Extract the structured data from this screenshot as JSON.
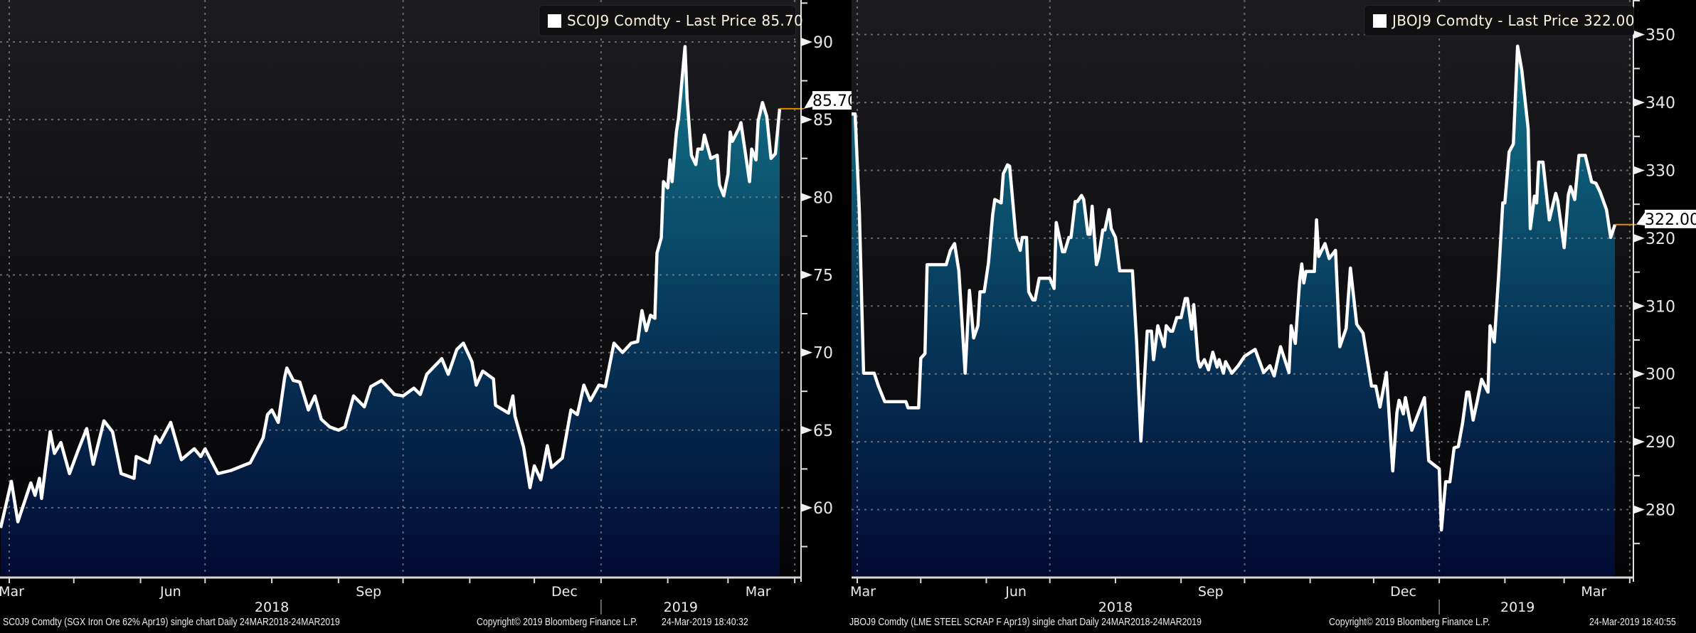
{
  "chart_data": [
    {
      "type": "area",
      "title": "SC0J9 Comdty",
      "legend": "SC0J9 Comdty - Last Price 85.70",
      "series_name": "SC0J9 Comdty - Last Price",
      "last_price": "85.70",
      "x_unit": "days since 24-Mar-2018",
      "xlim": [
        0,
        366
      ],
      "ylim": [
        55.6,
        92.7
      ],
      "yticks": [
        60,
        65,
        70,
        75,
        80,
        85,
        90
      ],
      "ytick_labels": [
        "60",
        "65",
        "70",
        "75",
        "80",
        "85",
        "90"
      ],
      "minor_ytick_step": 2.5,
      "grid": true,
      "legend_position": "top-right",
      "month_labels": [
        "Mar",
        "Jun",
        "Sep",
        "Dec",
        "Mar"
      ],
      "year_labels": [
        "2018",
        "2019"
      ],
      "colors": {
        "line": "#ffffff",
        "fill_top": "#13768b",
        "fill_bottom": "#020a33",
        "last_price_line": "#e08a00"
      },
      "points": [
        [
          4,
          58.7
        ],
        [
          9,
          61.7
        ],
        [
          12,
          59.1
        ],
        [
          18,
          61.6
        ],
        [
          20,
          60.8
        ],
        [
          22,
          61.9
        ],
        [
          23,
          60.6
        ],
        [
          27,
          64.9
        ],
        [
          29,
          63.5
        ],
        [
          32,
          64.2
        ],
        [
          36,
          62.2
        ],
        [
          40,
          63.7
        ],
        [
          44,
          65.1
        ],
        [
          47,
          62.8
        ],
        [
          52,
          65.6
        ],
        [
          56,
          64.9
        ],
        [
          60,
          62.2
        ],
        [
          66,
          61.9
        ],
        [
          67,
          63.3
        ],
        [
          73,
          62.9
        ],
        [
          76,
          64.6
        ],
        [
          78,
          64.2
        ],
        [
          83,
          65.5
        ],
        [
          88,
          63.1
        ],
        [
          94,
          63.8
        ],
        [
          97,
          63.3
        ],
        [
          99,
          63.8
        ],
        [
          105,
          62.2
        ],
        [
          111,
          62.4
        ],
        [
          120,
          62.9
        ],
        [
          126,
          64.5
        ],
        [
          128,
          66.0
        ],
        [
          130,
          66.3
        ],
        [
          133,
          65.5
        ],
        [
          136,
          68.4
        ],
        [
          137,
          69.0
        ],
        [
          140,
          68.2
        ],
        [
          143,
          68.1
        ],
        [
          147,
          66.3
        ],
        [
          150,
          67.2
        ],
        [
          153,
          65.7
        ],
        [
          157,
          65.2
        ],
        [
          161,
          65.0
        ],
        [
          164,
          65.2
        ],
        [
          168,
          67.2
        ],
        [
          173,
          66.5
        ],
        [
          176,
          67.8
        ],
        [
          181,
          68.2
        ],
        [
          187,
          67.3
        ],
        [
          191,
          67.2
        ],
        [
          196,
          67.7
        ],
        [
          199,
          67.3
        ],
        [
          202,
          68.6
        ],
        [
          209,
          69.6
        ],
        [
          212,
          68.6
        ],
        [
          216,
          70.2
        ],
        [
          219,
          70.6
        ],
        [
          223,
          69.4
        ],
        [
          225,
          67.9
        ],
        [
          228,
          68.8
        ],
        [
          233,
          68.3
        ],
        [
          234,
          66.6
        ],
        [
          240,
          66.1
        ],
        [
          242,
          67.2
        ],
        [
          243,
          65.9
        ],
        [
          247,
          63.9
        ],
        [
          250,
          61.3
        ],
        [
          252,
          62.7
        ],
        [
          255,
          61.8
        ],
        [
          258,
          64.0
        ],
        [
          260,
          62.6
        ],
        [
          265,
          63.2
        ],
        [
          269,
          66.3
        ],
        [
          272,
          66.0
        ],
        [
          275,
          67.9
        ],
        [
          278,
          66.9
        ],
        [
          282,
          67.9
        ],
        [
          285,
          67.8
        ],
        [
          289,
          70.6
        ],
        [
          293,
          70.0
        ],
        [
          297,
          70.6
        ],
        [
          300,
          70.7
        ],
        [
          302,
          72.7
        ],
        [
          304,
          71.4
        ],
        [
          306,
          72.4
        ],
        [
          308,
          72.2
        ],
        [
          309,
          76.4
        ],
        [
          311,
          77.4
        ],
        [
          312,
          81.0
        ],
        [
          314,
          80.6
        ],
        [
          315,
          82.4
        ],
        [
          316,
          81.0
        ],
        [
          318,
          84.2
        ],
        [
          319,
          85.1
        ],
        [
          322,
          89.7
        ],
        [
          323,
          86.3
        ],
        [
          325,
          82.7
        ],
        [
          327,
          82.1
        ],
        [
          328,
          83.1
        ],
        [
          330,
          83.1
        ],
        [
          331,
          84.0
        ],
        [
          334,
          82.5
        ],
        [
          337,
          82.7
        ],
        [
          338,
          80.8
        ],
        [
          340,
          80.1
        ],
        [
          342,
          81.5
        ],
        [
          343,
          84.2
        ],
        [
          344,
          83.6
        ],
        [
          347,
          84.4
        ],
        [
          348,
          84.8
        ],
        [
          352,
          81.0
        ],
        [
          353,
          83.1
        ],
        [
          355,
          82.4
        ],
        [
          356,
          84.9
        ],
        [
          358,
          86.1
        ],
        [
          360,
          85.2
        ],
        [
          362,
          82.5
        ],
        [
          364,
          82.8
        ],
        [
          366,
          85.7
        ]
      ]
    },
    {
      "type": "area",
      "title": "JBOJ9 Comdty",
      "legend": "JBOJ9 Comdty - Last Price 322.00",
      "series_name": "JBOJ9 Comdty - Last Price",
      "last_price": "322.00",
      "x_unit": "days since 24-Mar-2018",
      "xlim": [
        0,
        366
      ],
      "ylim": [
        270.2,
        355.1
      ],
      "yticks": [
        280,
        290,
        300,
        310,
        320,
        330,
        340,
        350
      ],
      "ytick_labels": [
        "280",
        "290",
        "300",
        "310",
        "320",
        "330",
        "340",
        "350"
      ],
      "minor_ytick_step": 5,
      "grid": true,
      "legend_position": "top-right",
      "month_labels": [
        "Mar",
        "Jun",
        "Sep",
        "Dec",
        "Mar"
      ],
      "year_labels": [
        "2018",
        "2019"
      ],
      "colors": {
        "line": "#ffffff",
        "fill_top": "#13768b",
        "fill_bottom": "#020a33",
        "last_price_line": "#e08a00"
      },
      "points": [
        [
          4,
          338.3
        ],
        [
          7,
          338.3
        ],
        [
          9,
          323.8
        ],
        [
          11,
          300.1
        ],
        [
          16,
          300.1
        ],
        [
          18,
          298.2
        ],
        [
          21,
          295.9
        ],
        [
          31,
          295.9
        ],
        [
          32,
          295.0
        ],
        [
          37,
          295.0
        ],
        [
          38,
          302.3
        ],
        [
          40,
          303.0
        ],
        [
          41,
          316.1
        ],
        [
          50,
          316.1
        ],
        [
          52,
          318.2
        ],
        [
          54,
          319.2
        ],
        [
          56,
          315.2
        ],
        [
          59,
          300.1
        ],
        [
          61,
          312.3
        ],
        [
          63,
          305.3
        ],
        [
          65,
          307.1
        ],
        [
          66,
          312.1
        ],
        [
          68,
          312.1
        ],
        [
          70,
          316.4
        ],
        [
          72,
          323.5
        ],
        [
          73,
          325.7
        ],
        [
          76,
          325.2
        ],
        [
          77,
          329.5
        ],
        [
          79,
          330.8
        ],
        [
          80,
          330.6
        ],
        [
          83,
          320.1
        ],
        [
          85,
          318.2
        ],
        [
          86,
          320.1
        ],
        [
          88,
          320.1
        ],
        [
          89,
          312.1
        ],
        [
          91,
          310.9
        ],
        [
          92,
          310.9
        ],
        [
          94,
          314.1
        ],
        [
          99,
          314.1
        ],
        [
          101,
          312.6
        ],
        [
          102,
          322.3
        ],
        [
          105,
          318.0
        ],
        [
          106,
          318.0
        ],
        [
          108,
          320.1
        ],
        [
          109,
          320.1
        ],
        [
          111,
          325.4
        ],
        [
          112,
          325.4
        ],
        [
          114,
          326.3
        ],
        [
          115,
          325.7
        ],
        [
          117,
          320.6
        ],
        [
          118,
          320.6
        ],
        [
          119,
          324.7
        ],
        [
          121,
          316.1
        ],
        [
          122,
          317.1
        ],
        [
          124,
          321.2
        ],
        [
          125,
          321.2
        ],
        [
          127,
          324.2
        ],
        [
          128,
          321.4
        ],
        [
          130,
          320.1
        ],
        [
          132,
          315.2
        ],
        [
          138,
          315.2
        ],
        [
          140,
          304.7
        ],
        [
          142,
          290.1
        ],
        [
          145,
          306.3
        ],
        [
          147,
          306.3
        ],
        [
          148,
          302.1
        ],
        [
          150,
          307.1
        ],
        [
          153,
          304.0
        ],
        [
          154,
          307.1
        ],
        [
          156,
          306.3
        ],
        [
          157,
          306.3
        ],
        [
          159,
          308.3
        ],
        [
          161,
          308.3
        ],
        [
          163,
          311.1
        ],
        [
          164,
          311.1
        ],
        [
          166,
          306.6
        ],
        [
          167,
          310.2
        ],
        [
          169,
          302.1
        ],
        [
          170,
          301.0
        ],
        [
          172,
          302.1
        ],
        [
          174,
          300.6
        ],
        [
          176,
          303.2
        ],
        [
          178,
          301.0
        ],
        [
          179,
          302.1
        ],
        [
          181,
          300.1
        ],
        [
          182,
          301.8
        ],
        [
          185,
          300.1
        ],
        [
          188,
          301.2
        ],
        [
          191,
          302.6
        ],
        [
          196,
          303.6
        ],
        [
          200,
          300.2
        ],
        [
          203,
          301.2
        ],
        [
          205,
          299.7
        ],
        [
          208,
          304.0
        ],
        [
          212,
          300.2
        ],
        [
          213,
          307.1
        ],
        [
          215,
          304.5
        ],
        [
          217,
          313.6
        ],
        [
          218,
          316.2
        ],
        [
          219,
          313.4
        ],
        [
          220,
          315.1
        ],
        [
          224,
          315.1
        ],
        [
          225,
          322.7
        ],
        [
          226,
          317.3
        ],
        [
          229,
          319.2
        ],
        [
          231,
          317.0
        ],
        [
          234,
          318.2
        ],
        [
          236,
          304.0
        ],
        [
          239,
          306.7
        ],
        [
          241,
          315.6
        ],
        [
          244,
          307.3
        ],
        [
          247,
          306.0
        ],
        [
          251,
          298.2
        ],
        [
          253,
          298.2
        ],
        [
          255,
          295.1
        ],
        [
          258,
          300.2
        ],
        [
          261,
          285.7
        ],
        [
          263,
          294.3
        ],
        [
          264,
          296.1
        ],
        [
          266,
          294.1
        ],
        [
          267,
          296.5
        ],
        [
          270,
          291.7
        ],
        [
          276,
          296.5
        ],
        [
          278,
          287.2
        ],
        [
          283,
          286.0
        ],
        [
          284,
          277.0
        ],
        [
          286,
          284.1
        ],
        [
          288,
          284.1
        ],
        [
          290,
          289.1
        ],
        [
          292,
          289.3
        ],
        [
          294,
          292.7
        ],
        [
          296,
          297.3
        ],
        [
          297,
          297.3
        ],
        [
          299,
          293.2
        ],
        [
          301,
          296.1
        ],
        [
          303,
          299.2
        ],
        [
          306,
          297.3
        ],
        [
          307,
          307.1
        ],
        [
          309,
          304.7
        ],
        [
          311,
          314.2
        ],
        [
          313,
          325.2
        ],
        [
          314,
          325.2
        ],
        [
          316,
          332.7
        ],
        [
          318,
          333.9
        ],
        [
          320,
          348.3
        ],
        [
          322,
          344.7
        ],
        [
          325,
          336.1
        ],
        [
          326,
          321.4
        ],
        [
          328,
          326.2
        ],
        [
          329,
          325.2
        ],
        [
          330,
          331.2
        ],
        [
          332,
          331.2
        ],
        [
          335,
          322.7
        ],
        [
          338,
          326.6
        ],
        [
          339,
          325.5
        ],
        [
          342,
          318.6
        ],
        [
          344,
          326.4
        ],
        [
          345,
          327.6
        ],
        [
          347,
          325.7
        ],
        [
          349,
          332.2
        ],
        [
          352,
          332.2
        ],
        [
          355,
          328.3
        ],
        [
          357,
          328.1
        ],
        [
          359,
          326.8
        ],
        [
          362,
          324.2
        ],
        [
          364,
          320.1
        ],
        [
          366,
          322.0
        ]
      ]
    }
  ],
  "footers": [
    {
      "description": "SC0J9 Comdty (SGX Iron Ore 62% Apr19) single chart  Daily 24MAR2018-24MAR2019",
      "copyright": "Copyright© 2019 Bloomberg Finance L.P.",
      "timestamp": "24-Mar-2019 18:40:32"
    },
    {
      "description": "JBOJ9 Comdty (LME STEEL SCRAP F Apr19) single chart  Daily 24MAR2018-24MAR2019",
      "copyright": "Copyright© 2019 Bloomberg Finance L.P.",
      "timestamp": "24-Mar-2019 18:40:55"
    }
  ]
}
